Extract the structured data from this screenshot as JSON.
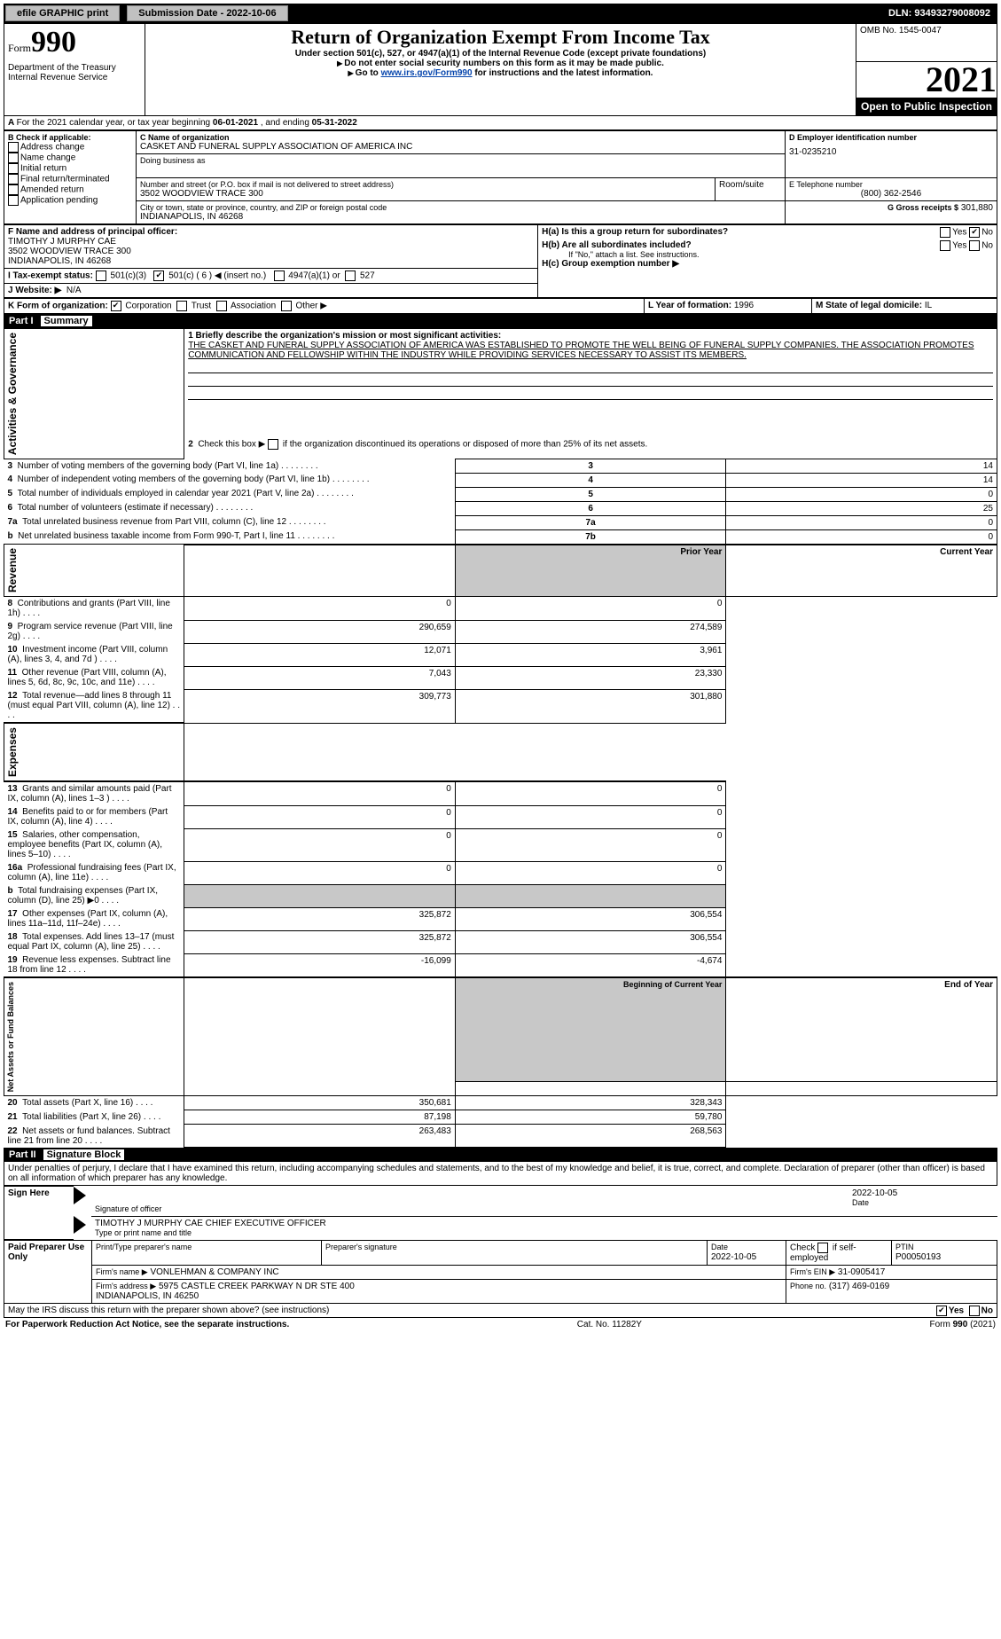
{
  "topbar": {
    "efile": "efile GRAPHIC print",
    "submission_label": "Submission Date - 2022-10-06",
    "dln": "DLN: 93493279008092"
  },
  "header": {
    "form_prefix": "Form",
    "form_number": "990",
    "title": "Return of Organization Exempt From Income Tax",
    "subtitle": "Under section 501(c), 527, or 4947(a)(1) of the Internal Revenue Code (except private foundations)",
    "note1": "Do not enter social security numbers on this form as it may be made public.",
    "note2_pre": "Go to ",
    "note2_link": "www.irs.gov/Form990",
    "note2_post": " for instructions and the latest information.",
    "dept": "Department of the Treasury",
    "irs": "Internal Revenue Service",
    "omb": "OMB No. 1545-0047",
    "year": "2021",
    "open_pub": "Open to Public Inspection"
  },
  "periodA": {
    "text_pre": "For the 2021 calendar year, or tax year beginning ",
    "begin": "06-01-2021",
    "mid": " , and ending ",
    "end": "05-31-2022"
  },
  "boxB": {
    "label": "B Check if applicable:",
    "items": [
      "Address change",
      "Name change",
      "Initial return",
      "Final return/terminated",
      "Amended return",
      "Application pending"
    ]
  },
  "boxC": {
    "name_label": "C Name of organization",
    "name": "CASKET AND FUNERAL SUPPLY ASSOCIATION OF AMERICA INC",
    "dba_label": "Doing business as",
    "addr_label": "Number and street (or P.O. box if mail is not delivered to street address)",
    "room_label": "Room/suite",
    "addr": "3502 WOODVIEW TRACE 300",
    "city_label": "City or town, state or province, country, and ZIP or foreign postal code",
    "city": "INDIANAPOLIS, IN  46268"
  },
  "boxD": {
    "label": "D Employer identification number",
    "ein": "31-0235210"
  },
  "boxE": {
    "label": "E Telephone number",
    "phone": "(800) 362-2546"
  },
  "boxG": {
    "label": "G Gross receipts $",
    "amount": "301,880"
  },
  "boxF": {
    "label": "F Name and address of principal officer:",
    "name": "TIMOTHY J MURPHY CAE",
    "addr1": "3502 WOODVIEW TRACE 300",
    "addr2": "INDIANAPOLIS, IN  46268"
  },
  "boxH": {
    "a_label": "H(a)  Is this a group return for subordinates?",
    "a_yes": "Yes",
    "a_no": "No",
    "b_label": "H(b)  Are all subordinates included?",
    "b_yesno": "Yes       No",
    "b_note": "If \"No,\" attach a list. See instructions.",
    "c_label": "H(c)  Group exemption number ▶"
  },
  "boxI": {
    "label": "I  Tax-exempt status:",
    "c3": "501(c)(3)",
    "c_pre": "501(c) ( ",
    "c_num": "6",
    "c_post": " ) ◀ (insert no.)",
    "a1": "4947(a)(1) or",
    "s527": "527"
  },
  "boxJ": {
    "label": "J  Website: ▶",
    "value": "N/A"
  },
  "boxK": {
    "label": "K Form of organization:",
    "corp": "Corporation",
    "trust": "Trust",
    "assoc": "Association",
    "other": "Other ▶"
  },
  "boxL": {
    "label": "L Year of formation:",
    "value": "1996"
  },
  "boxM": {
    "label": "M State of legal domicile:",
    "value": "IL"
  },
  "part1": {
    "hdr": "Part I",
    "title": "Summary",
    "q1": "1  Briefly describe the organization's mission or most significant activities:",
    "mission": "THE CASKET AND FUNERAL SUPPLY ASSOCIATION OF AMERICA WAS ESTABLISHED TO PROMOTE THE WELL BEING OF FUNERAL SUPPLY COMPANIES. THE ASSOCIATION PROMOTES COMMUNICATION AND FELLOWSHIP WITHIN THE INDUSTRY WHILE PROVIDING SERVICES NECESSARY TO ASSIST ITS MEMBERS.",
    "q2": "2   Check this box ▶       if the organization discontinued its operations or disposed of more than 25% of its net assets.",
    "vert_ag": "Activities & Governance",
    "vert_rev": "Revenue",
    "vert_exp": "Expenses",
    "vert_net": "Net Assets or Fund Balances",
    "rows_ag": [
      {
        "n": "3",
        "t": "Number of voting members of the governing body (Part VI, line 1a)",
        "k": "3",
        "v": "14"
      },
      {
        "n": "4",
        "t": "Number of independent voting members of the governing body (Part VI, line 1b)",
        "k": "4",
        "v": "14"
      },
      {
        "n": "5",
        "t": "Total number of individuals employed in calendar year 2021 (Part V, line 2a)",
        "k": "5",
        "v": "0"
      },
      {
        "n": "6",
        "t": "Total number of volunteers (estimate if necessary)",
        "k": "6",
        "v": "25"
      },
      {
        "n": "7a",
        "t": "Total unrelated business revenue from Part VIII, column (C), line 12",
        "k": "7a",
        "v": "0"
      },
      {
        "n": "b",
        "t": "Net unrelated business taxable income from Form 990-T, Part I, line 11",
        "k": "7b",
        "v": "0"
      }
    ],
    "hdr_prior": "Prior Year",
    "hdr_current": "Current Year",
    "rows_rev": [
      {
        "n": "8",
        "t": "Contributions and grants (Part VIII, line 1h)",
        "p": "0",
        "c": "0"
      },
      {
        "n": "9",
        "t": "Program service revenue (Part VIII, line 2g)",
        "p": "290,659",
        "c": "274,589"
      },
      {
        "n": "10",
        "t": "Investment income (Part VIII, column (A), lines 3, 4, and 7d )",
        "p": "12,071",
        "c": "3,961"
      },
      {
        "n": "11",
        "t": "Other revenue (Part VIII, column (A), lines 5, 6d, 8c, 9c, 10c, and 11e)",
        "p": "7,043",
        "c": "23,330"
      },
      {
        "n": "12",
        "t": "Total revenue—add lines 8 through 11 (must equal Part VIII, column (A), line 12)",
        "p": "309,773",
        "c": "301,880"
      }
    ],
    "rows_exp": [
      {
        "n": "13",
        "t": "Grants and similar amounts paid (Part IX, column (A), lines 1–3 )",
        "p": "0",
        "c": "0"
      },
      {
        "n": "14",
        "t": "Benefits paid to or for members (Part IX, column (A), line 4)",
        "p": "0",
        "c": "0"
      },
      {
        "n": "15",
        "t": "Salaries, other compensation, employee benefits (Part IX, column (A), lines 5–10)",
        "p": "0",
        "c": "0"
      },
      {
        "n": "16a",
        "t": "Professional fundraising fees (Part IX, column (A), line 11e)",
        "p": "0",
        "c": "0"
      },
      {
        "n": "b",
        "t": "Total fundraising expenses (Part IX, column (D), line 25) ▶0",
        "p": "",
        "c": "",
        "shade": true
      },
      {
        "n": "17",
        "t": "Other expenses (Part IX, column (A), lines 11a–11d, 11f–24e)",
        "p": "325,872",
        "c": "306,554"
      },
      {
        "n": "18",
        "t": "Total expenses. Add lines 13–17 (must equal Part IX, column (A), line 25)",
        "p": "325,872",
        "c": "306,554"
      },
      {
        "n": "19",
        "t": "Revenue less expenses. Subtract line 18 from line 12",
        "p": "-16,099",
        "c": "-4,674"
      }
    ],
    "hdr_boy": "Beginning of Current Year",
    "hdr_eoy": "End of Year",
    "rows_net": [
      {
        "n": "20",
        "t": "Total assets (Part X, line 16)",
        "p": "350,681",
        "c": "328,343"
      },
      {
        "n": "21",
        "t": "Total liabilities (Part X, line 26)",
        "p": "87,198",
        "c": "59,780"
      },
      {
        "n": "22",
        "t": "Net assets or fund balances. Subtract line 21 from line 20",
        "p": "263,483",
        "c": "268,563"
      }
    ]
  },
  "part2": {
    "hdr": "Part II",
    "title": "Signature Block",
    "jurat": "Under penalties of perjury, I declare that I have examined this return, including accompanying schedules and statements, and to the best of my knowledge and belief, it is true, correct, and complete. Declaration of preparer (other than officer) is based on all information of which preparer has any knowledge.",
    "sign_here": "Sign Here",
    "sig_officer": "Signature of officer",
    "sig_date": "2022-10-05",
    "date_lbl": "Date",
    "officer": "TIMOTHY J MURPHY CAE  CHIEF EXECUTIVE OFFICER",
    "officer_lbl": "Type or print name and title",
    "paid": "Paid Preparer Use Only",
    "pp_name_lbl": "Print/Type preparer's name",
    "pp_sig_lbl": "Preparer's signature",
    "pp_date_lbl": "Date",
    "pp_date": "2022-10-05",
    "pp_self": "Check        if self-employed",
    "ptin_lbl": "PTIN",
    "ptin": "P00050193",
    "firm_name_lbl": "Firm's name    ▶",
    "firm_name": "VONLEHMAN & COMPANY INC",
    "firm_ein_lbl": "Firm's EIN ▶",
    "firm_ein": "31-0905417",
    "firm_addr_lbl": "Firm's address ▶",
    "firm_addr": "5975 CASTLE CREEK PARKWAY N DR STE 400\nINDIANAPOLIS, IN  46250",
    "firm_phone_lbl": "Phone no.",
    "firm_phone": "(317) 469-0169",
    "discuss": "May the IRS discuss this return with the preparer shown above? (see instructions)",
    "yes": "Yes",
    "no": "No"
  },
  "footer": {
    "pra": "For Paperwork Reduction Act Notice, see the separate instructions.",
    "cat": "Cat. No. 11282Y",
    "form": "Form 990 (2021)"
  }
}
